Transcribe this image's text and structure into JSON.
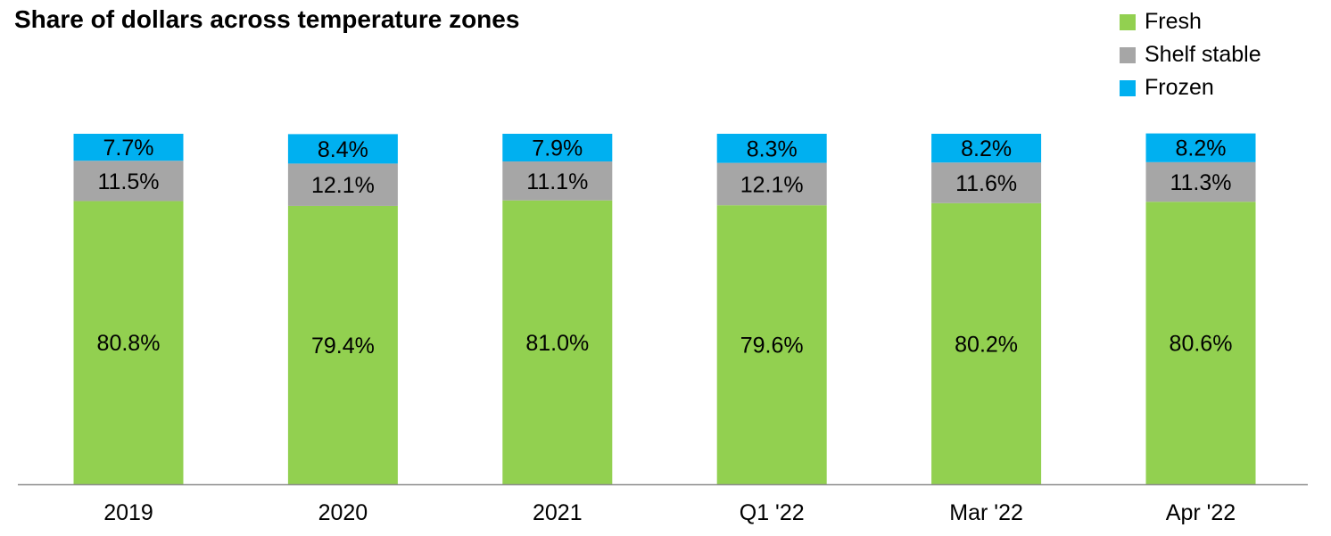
{
  "chart_data": {
    "type": "bar",
    "stacked": true,
    "title": "Share of dollars across temperature zones",
    "categories": [
      "2019",
      "2020",
      "2021",
      "Q1 '22",
      "Mar '22",
      "Apr '22"
    ],
    "series": [
      {
        "name": "Fresh",
        "color": "#92d050",
        "values": [
          80.8,
          79.4,
          81.0,
          79.6,
          80.2,
          80.6
        ],
        "labels": [
          "80.8%",
          "79.4%",
          "81.0%",
          "79.6%",
          "80.2%",
          "80.6%"
        ]
      },
      {
        "name": "Shelf stable",
        "color": "#a6a6a6",
        "values": [
          11.5,
          12.1,
          11.1,
          12.1,
          11.6,
          11.3
        ],
        "labels": [
          "11.5%",
          "12.1%",
          "11.1%",
          "12.1%",
          "11.6%",
          "11.3%"
        ]
      },
      {
        "name": "Frozen",
        "color": "#00b0f0",
        "values": [
          7.7,
          8.4,
          7.9,
          8.3,
          8.2,
          8.2
        ],
        "labels": [
          "7.7%",
          "8.4%",
          "7.9%",
          "8.3%",
          "8.2%",
          "8.2%"
        ]
      }
    ],
    "ylim": [
      0,
      100
    ],
    "grid": false,
    "legend": "top-right",
    "xlabel": "",
    "ylabel": ""
  }
}
